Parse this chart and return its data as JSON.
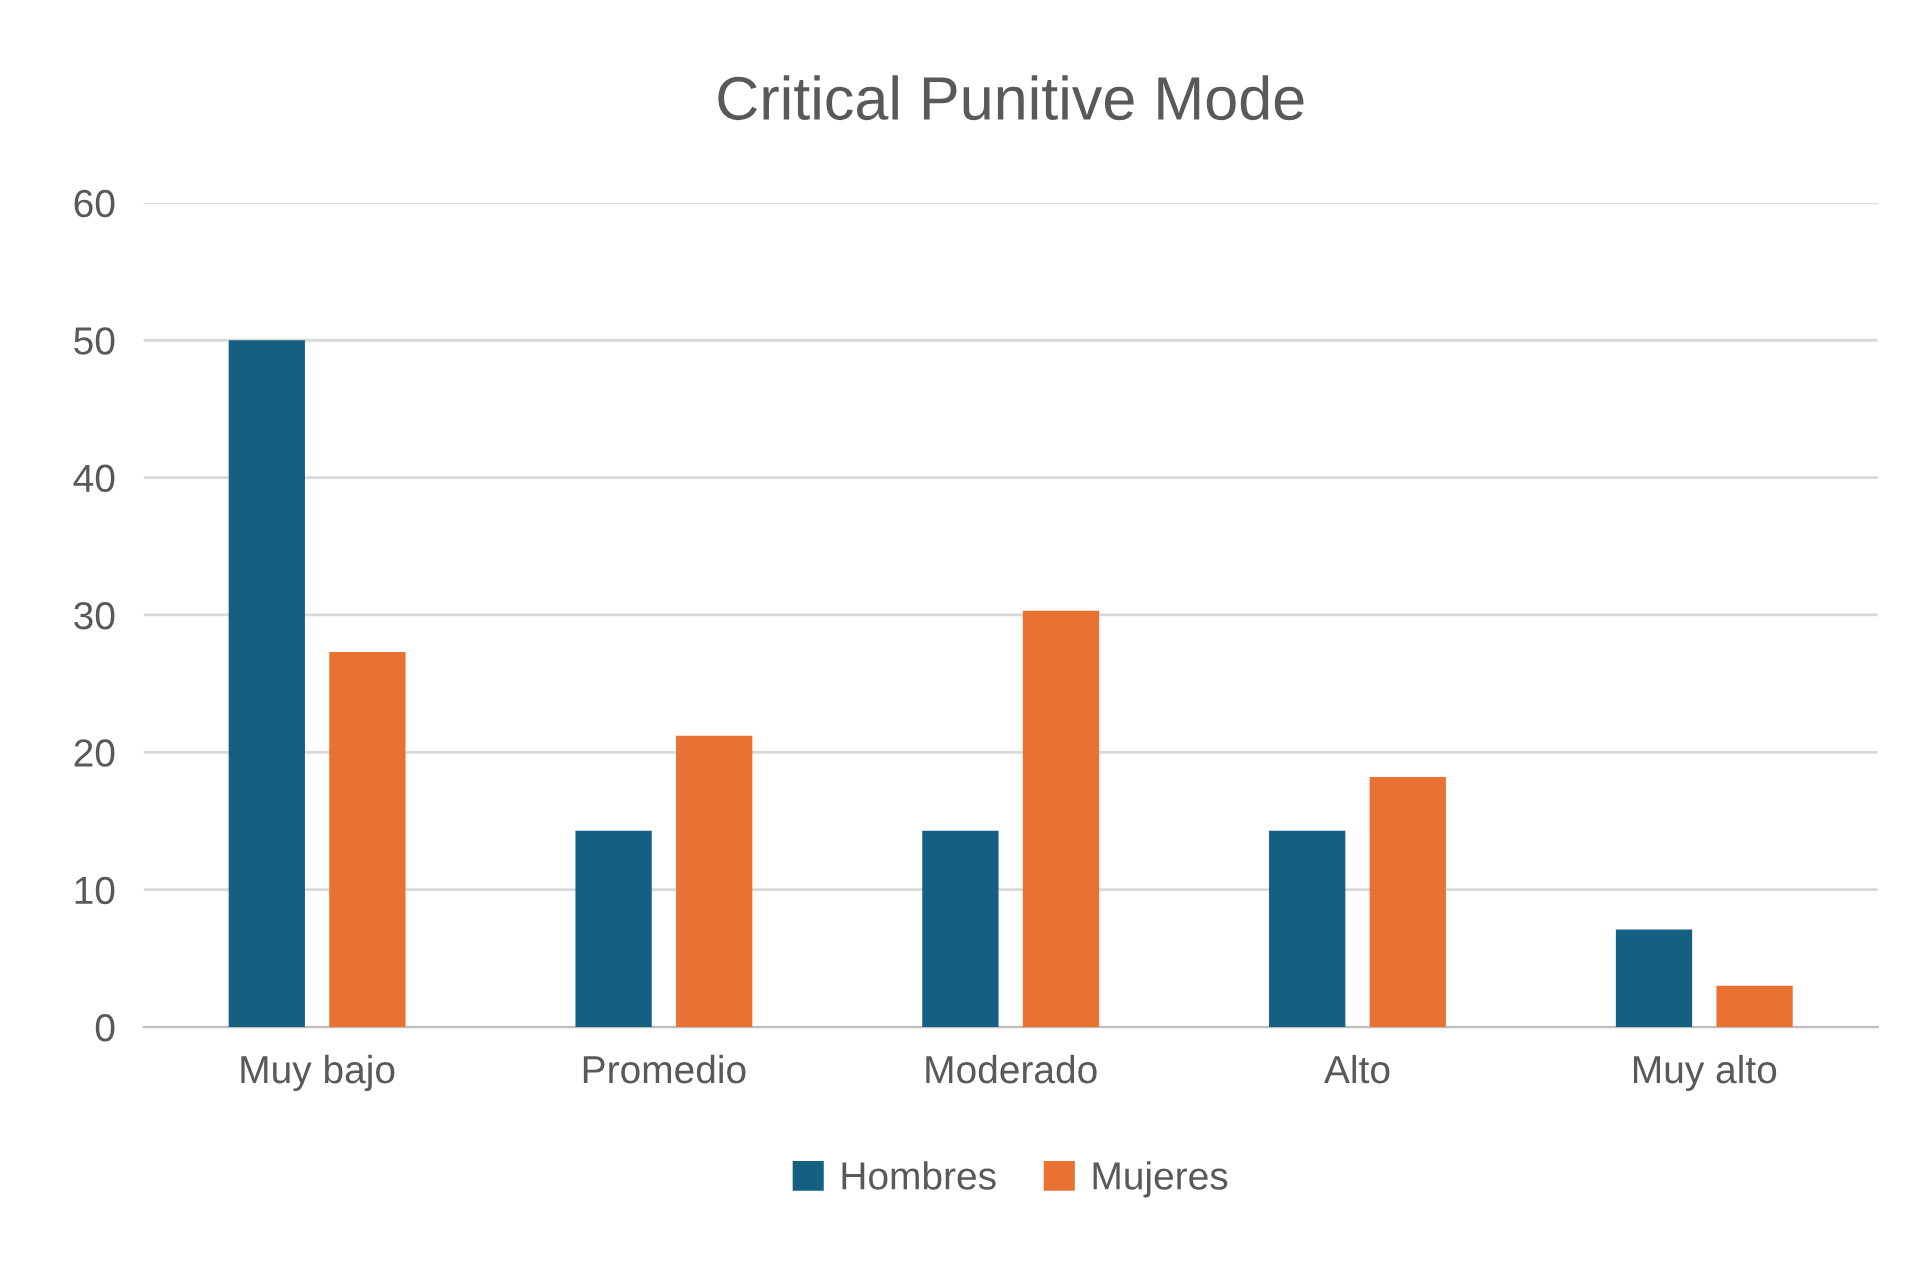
{
  "chart_data": {
    "type": "bar",
    "title": "Critical Punitive Mode",
    "categories": [
      "Muy bajo",
      "Promedio",
      "Moderado",
      "Alto",
      "Muy alto"
    ],
    "series": [
      {
        "name": "Hombres",
        "color": "#156082",
        "values": [
          50,
          14.3,
          14.3,
          14.3,
          7.1
        ]
      },
      {
        "name": "Mujeres",
        "color": "#e97132",
        "values": [
          27.3,
          21.2,
          30.3,
          18.2,
          3.0
        ]
      }
    ],
    "ylim": [
      0,
      60
    ],
    "yticks": [
      0,
      10,
      20,
      30,
      40,
      50,
      60
    ],
    "grid": "y",
    "legend": "bottom"
  }
}
